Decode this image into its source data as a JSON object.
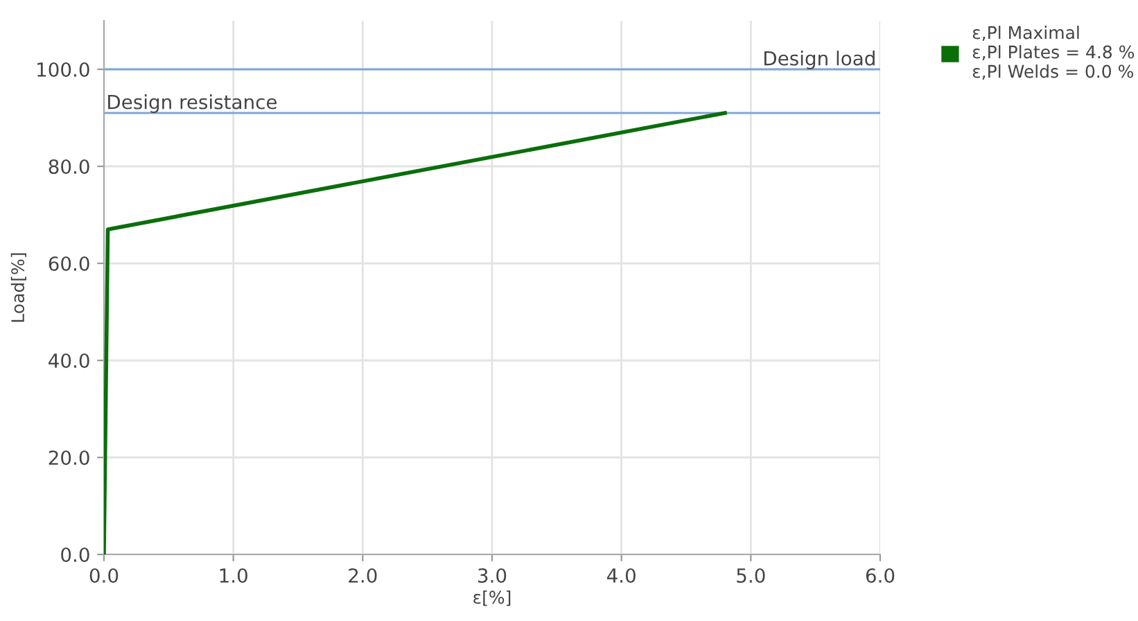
{
  "chart_data": {
    "type": "line",
    "xlabel": "ε[%]",
    "ylabel": "Load[%]",
    "x": [
      0,
      0.03,
      4.8
    ],
    "series": [
      {
        "name": "ε,Pl Maximal\nε,Pl Plates = 4.8 %\nε,Pl Welds = 0.0 %",
        "color": "#0b6e0b",
        "values": [
          0,
          67,
          91
        ]
      }
    ],
    "xlim": [
      0,
      6
    ],
    "ylim": [
      0,
      110
    ],
    "xticks": [
      {
        "value": 0,
        "label": "0.0"
      },
      {
        "value": 1,
        "label": "1.0"
      },
      {
        "value": 2,
        "label": "2.0"
      },
      {
        "value": 3,
        "label": "3.0"
      },
      {
        "value": 4,
        "label": "4.0"
      },
      {
        "value": 5,
        "label": "5.0"
      },
      {
        "value": 6,
        "label": "6.0"
      }
    ],
    "yticks": [
      {
        "value": 0,
        "label": "0.0"
      },
      {
        "value": 20,
        "label": "20.0"
      },
      {
        "value": 40,
        "label": "40.0"
      },
      {
        "value": 60,
        "label": "60.0"
      },
      {
        "value": 80,
        "label": "80.0"
      },
      {
        "value": 100,
        "label": "100.0"
      }
    ],
    "ref_lines": [
      {
        "axis": "y",
        "value": 100,
        "label": "Design load",
        "color": "#7fa7d6"
      },
      {
        "axis": "y",
        "value": 91,
        "label": "Design resistance",
        "color": "#7fa7d6"
      }
    ],
    "grid": true,
    "legend": "top right",
    "marker": "none",
    "line_style": "solid"
  }
}
